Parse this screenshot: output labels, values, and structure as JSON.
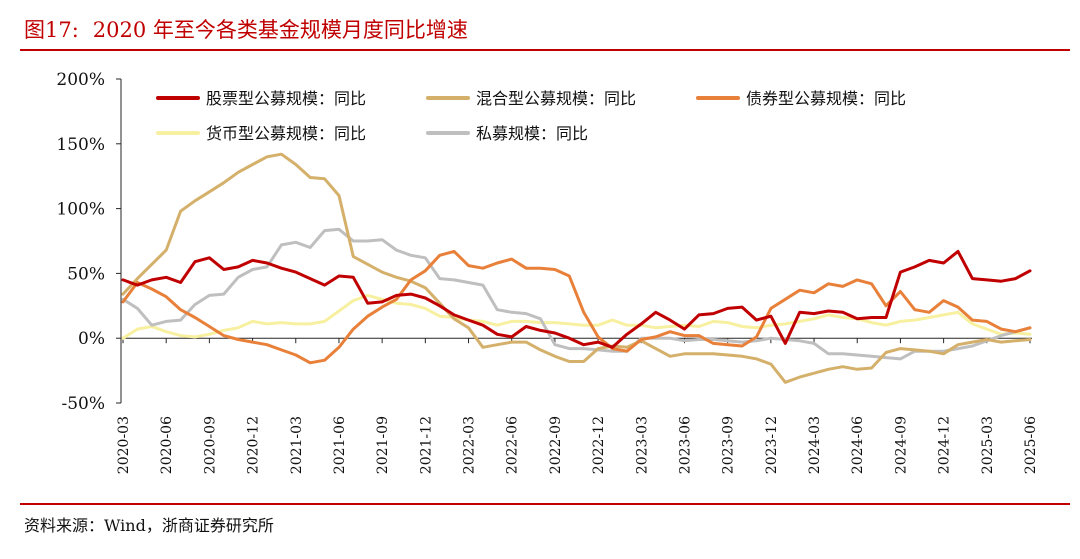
{
  "figure": {
    "label": "图17:",
    "title": "2020 年至今各类基金规模月度同比增速",
    "source": "资料来源：Wind，浙商证券研究所"
  },
  "colors": {
    "accent": "#c00000",
    "axis": "#262626"
  },
  "chart_data": {
    "type": "line",
    "title": "",
    "xlabel": "",
    "ylabel": "",
    "ylim": [
      -50,
      200
    ],
    "yticks": [
      -50,
      0,
      50,
      100,
      150,
      200
    ],
    "ytick_labels": [
      "-50%",
      "0%",
      "50%",
      "100%",
      "150%",
      "200%"
    ],
    "grid": false,
    "legend_position": "top",
    "x": [
      "2020-03",
      "2020-04",
      "2020-05",
      "2020-06",
      "2020-07",
      "2020-08",
      "2020-09",
      "2020-10",
      "2020-11",
      "2020-12",
      "2021-01",
      "2021-02",
      "2021-03",
      "2021-04",
      "2021-05",
      "2021-06",
      "2021-07",
      "2021-08",
      "2021-09",
      "2021-10",
      "2021-11",
      "2021-12",
      "2022-01",
      "2022-02",
      "2022-03",
      "2022-04",
      "2022-05",
      "2022-06",
      "2022-07",
      "2022-08",
      "2022-09",
      "2022-10",
      "2022-11",
      "2022-12",
      "2023-01",
      "2023-02",
      "2023-03",
      "2023-04",
      "2023-05",
      "2023-06",
      "2023-07",
      "2023-08",
      "2023-09",
      "2023-10",
      "2023-11",
      "2023-12",
      "2024-01",
      "2024-02",
      "2024-03",
      "2024-04",
      "2024-05",
      "2024-06",
      "2024-07",
      "2024-08",
      "2024-09",
      "2024-10",
      "2024-11",
      "2024-12",
      "2025-01",
      "2025-02",
      "2025-03",
      "2025-04",
      "2025-05",
      "2025-06"
    ],
    "xtick_labels": [
      "2020-03",
      "2020-06",
      "2020-09",
      "2020-12",
      "2021-03",
      "2021-06",
      "2021-09",
      "2021-12",
      "2022-03",
      "2022-06",
      "2022-09",
      "2022-12",
      "2023-03",
      "2023-06",
      "2023-09",
      "2023-12",
      "2024-03",
      "2024-06",
      "2024-09",
      "2024-12",
      "2025-03",
      "2025-06"
    ],
    "series": [
      {
        "name": "股票型公募规模：同比",
        "color": "#c00000",
        "values": [
          45,
          41,
          45,
          47,
          43,
          59,
          62,
          53,
          55,
          60,
          58,
          54,
          51,
          46,
          41,
          48,
          47,
          27,
          28,
          33,
          34,
          31,
          25,
          18,
          14,
          10,
          3,
          1,
          9,
          6,
          4,
          0,
          -5,
          -3,
          -7,
          3,
          11,
          20,
          14,
          7,
          18,
          19,
          23,
          24,
          14,
          17,
          -4,
          20,
          19,
          21,
          20,
          15,
          16,
          16,
          51,
          55,
          60,
          58,
          67,
          46,
          45,
          44,
          46,
          52
        ]
      },
      {
        "name": "混合型公募规模：同比",
        "color": "#d4b06a",
        "values": [
          34,
          46,
          57,
          68,
          98,
          106,
          113,
          120,
          128,
          134,
          140,
          142,
          134,
          124,
          123,
          110,
          63,
          57,
          51,
          47,
          44,
          39,
          27,
          15,
          8,
          -7,
          -5,
          -3,
          -3,
          -9,
          -14,
          -18,
          -18,
          -8,
          -6,
          -7,
          -2,
          -8,
          -14,
          -12,
          -12,
          -12,
          -13,
          -14,
          -16,
          -20,
          -34,
          -30,
          -27,
          -24,
          -22,
          -24,
          -23,
          -11,
          -8,
          -9,
          -10,
          -12,
          -5,
          -3,
          -1,
          -3,
          -2,
          -1
        ]
      },
      {
        "name": "债券型公募规模：同比",
        "color": "#e8803a",
        "values": [
          28,
          43,
          38,
          32,
          22,
          16,
          9,
          2,
          -1,
          -3,
          -5,
          -9,
          -13,
          -19,
          -17,
          -7,
          7,
          17,
          24,
          30,
          45,
          52,
          64,
          67,
          56,
          54,
          58,
          61,
          54,
          54,
          53,
          48,
          20,
          1,
          -8,
          -10,
          -1,
          1,
          5,
          2,
          2,
          -4,
          -5,
          -6,
          1,
          23,
          30,
          37,
          35,
          42,
          40,
          45,
          42,
          25,
          36,
          22,
          20,
          29,
          24,
          14,
          13,
          7,
          5,
          8
        ]
      },
      {
        "name": "货币型公募规模：同比",
        "color": "#f7f0a0",
        "values": [
          0,
          7,
          9,
          5,
          2,
          1,
          3,
          6,
          8,
          13,
          11,
          12,
          11,
          11,
          13,
          21,
          29,
          33,
          30,
          27,
          26,
          23,
          17,
          16,
          14,
          13,
          10,
          13,
          13,
          12,
          12,
          11,
          10,
          10,
          14,
          10,
          10,
          8,
          9,
          10,
          9,
          13,
          12,
          9,
          8,
          10,
          11,
          13,
          15,
          18,
          16,
          15,
          12,
          10,
          13,
          14,
          16,
          18,
          20,
          11,
          7,
          3,
          4,
          3
        ]
      },
      {
        "name": "私募规模：同比",
        "color": "#bfbfbf",
        "values": [
          30,
          23,
          10,
          13,
          14,
          26,
          33,
          34,
          47,
          53,
          55,
          72,
          74,
          70,
          83,
          84,
          75,
          75,
          76,
          68,
          64,
          62,
          46,
          45,
          43,
          41,
          22,
          20,
          19,
          15,
          -5,
          -8,
          -8,
          -9,
          -10,
          -10,
          0,
          0,
          0,
          -2,
          -1,
          -1,
          -2,
          -3,
          -2,
          0,
          -1,
          -2,
          -4,
          -12,
          -12,
          -13,
          -14,
          -15,
          -16,
          -10,
          -10,
          -10,
          -8,
          -6,
          -2,
          2,
          5,
          8
        ]
      }
    ]
  }
}
